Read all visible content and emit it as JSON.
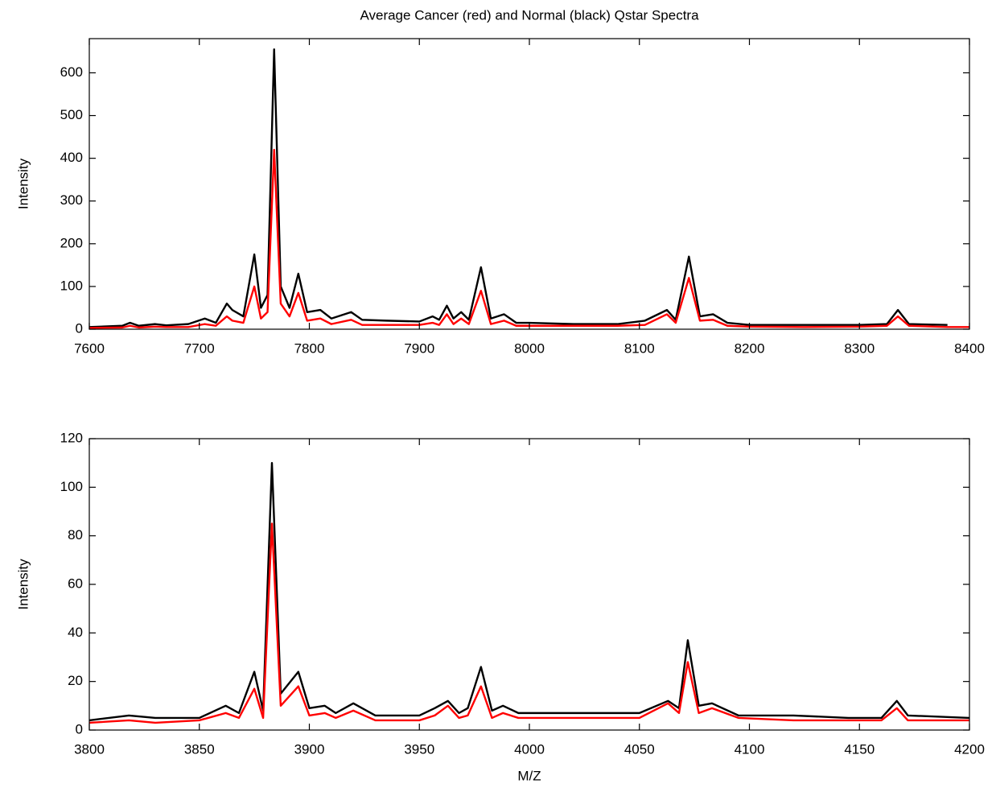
{
  "chart_data": [
    {
      "type": "line",
      "title": "Average Cancer (red) and Normal (black) Qstar Spectra",
      "ylabel": "Intensity",
      "xlim": [
        7600,
        8400
      ],
      "xticks": [
        7600,
        7700,
        7800,
        7900,
        8000,
        8100,
        8200,
        8300,
        8400
      ],
      "ylim": [
        0,
        680
      ],
      "yticks": [
        0,
        100,
        200,
        300,
        400,
        500,
        600
      ],
      "x": [
        7600,
        7630,
        7637,
        7645,
        7660,
        7670,
        7690,
        7705,
        7715,
        7725,
        7730,
        7740,
        7750,
        7756,
        7762,
        7768,
        7774,
        7782,
        7790,
        7798,
        7810,
        7820,
        7838,
        7848,
        7870,
        7900,
        7912,
        7918,
        7925,
        7931,
        7938,
        7945,
        7956,
        7965,
        7977,
        7988,
        8000,
        8040,
        8080,
        8105,
        8125,
        8133,
        8145,
        8155,
        8167,
        8180,
        8200,
        8250,
        8300,
        8325,
        8335,
        8345,
        8380,
        8400
      ],
      "series": [
        {
          "color": "#000000",
          "values": [
            5,
            8,
            15,
            8,
            12,
            9,
            12,
            25,
            15,
            60,
            45,
            30,
            175,
            50,
            80,
            655,
            100,
            50,
            130,
            40,
            45,
            25,
            40,
            22,
            20,
            18,
            30,
            22,
            55,
            25,
            40,
            22,
            145,
            25,
            35,
            15,
            15,
            12,
            12,
            20,
            45,
            22,
            170,
            30,
            35,
            15,
            10,
            10,
            10,
            12,
            45,
            12,
            10,
            null
          ]
        },
        {
          "color": "#ff0000",
          "values": [
            3,
            4,
            8,
            4,
            6,
            5,
            5,
            12,
            8,
            30,
            20,
            15,
            100,
            25,
            40,
            420,
            60,
            30,
            85,
            20,
            25,
            12,
            22,
            10,
            10,
            10,
            15,
            10,
            35,
            12,
            25,
            12,
            90,
            12,
            20,
            8,
            8,
            8,
            8,
            10,
            35,
            15,
            120,
            20,
            22,
            8,
            6,
            5,
            6,
            8,
            30,
            8,
            5,
            5
          ]
        }
      ]
    },
    {
      "type": "line",
      "ylabel": "Intensity",
      "xlabel": "M/Z",
      "xlim": [
        3800,
        4200
      ],
      "xticks": [
        3800,
        3850,
        3900,
        3950,
        4000,
        4050,
        4100,
        4150,
        4200
      ],
      "ylim": [
        0,
        120
      ],
      "yticks": [
        0,
        20,
        40,
        60,
        80,
        100,
        120
      ],
      "x": [
        3800,
        3818,
        3830,
        3850,
        3862,
        3868,
        3875,
        3879,
        3883,
        3887,
        3895,
        3900,
        3907,
        3912,
        3920,
        3930,
        3950,
        3957,
        3963,
        3968,
        3972,
        3978,
        3983,
        3988,
        3995,
        4020,
        4050,
        4063,
        4068,
        4072,
        4077,
        4083,
        4095,
        4120,
        4145,
        4160,
        4167,
        4172,
        4200
      ],
      "series": [
        {
          "color": "#000000",
          "values": [
            4,
            6,
            5,
            5,
            10,
            7,
            24,
            8,
            110,
            15,
            24,
            9,
            10,
            7,
            11,
            6,
            6,
            9,
            12,
            7,
            9,
            26,
            8,
            10,
            7,
            7,
            7,
            12,
            9,
            37,
            10,
            11,
            6,
            6,
            5,
            5,
            12,
            6,
            5
          ]
        },
        {
          "color": "#ff0000",
          "values": [
            3,
            4,
            3,
            4,
            7,
            5,
            17,
            5,
            85,
            10,
            18,
            6,
            7,
            5,
            8,
            4,
            4,
            6,
            10,
            5,
            6,
            18,
            5,
            7,
            5,
            5,
            5,
            11,
            7,
            28,
            7,
            9,
            5,
            4,
            4,
            4,
            9,
            4,
            4
          ]
        }
      ]
    }
  ]
}
